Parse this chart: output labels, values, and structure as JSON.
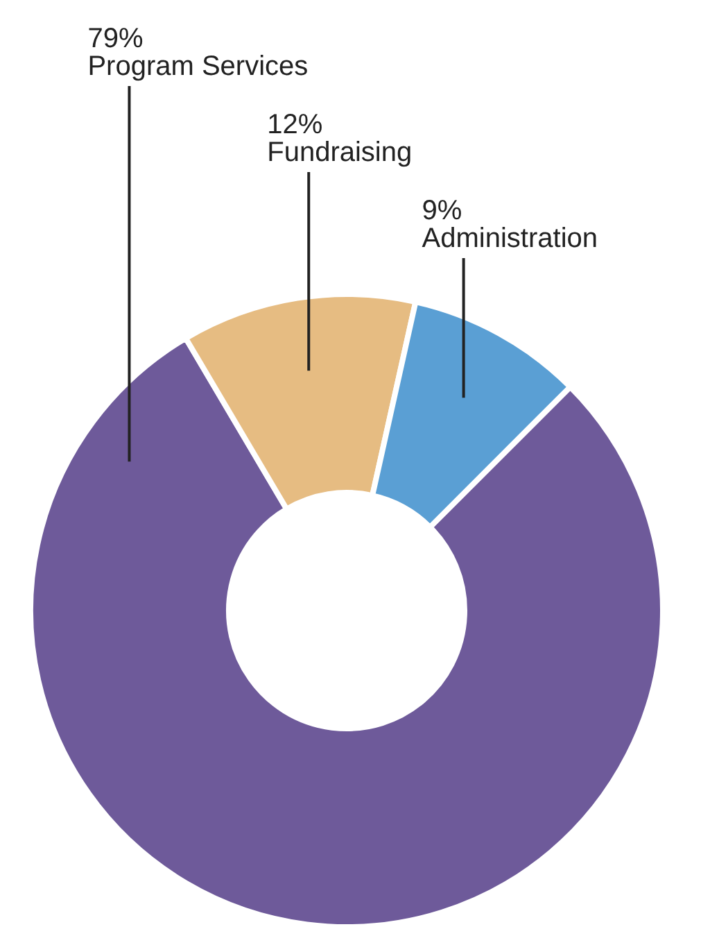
{
  "chart_data": {
    "type": "donut",
    "categories": [
      "Program Services",
      "Fundraising",
      "Administration"
    ],
    "values": [
      79,
      12,
      9
    ],
    "value_labels": [
      "79%",
      "12%",
      "9%"
    ],
    "colors": [
      "#6e5a9a",
      "#e6bc82",
      "#5a9fd4"
    ]
  }
}
